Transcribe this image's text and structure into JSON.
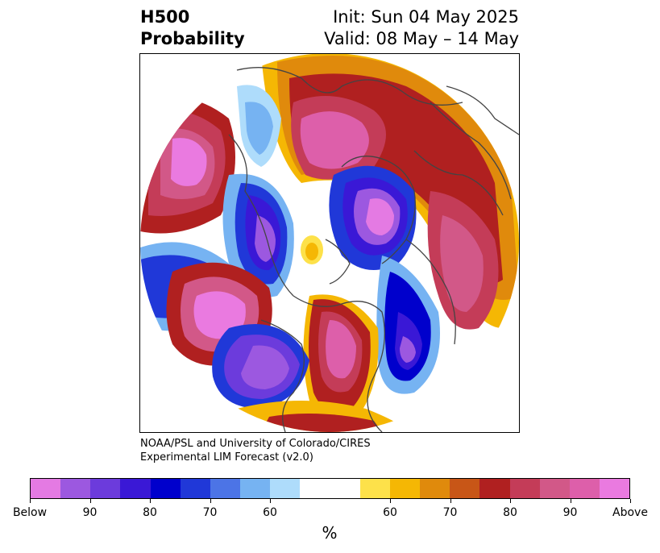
{
  "header": {
    "title_line1": "H500",
    "title_line2": "Probability",
    "init": "Init: Sun 04 May 2025",
    "valid": "Valid: 08 May – 14 May"
  },
  "credit": {
    "line1": "NOAA/PSL and University of Colorado/CIRES",
    "line2": "Experimental LIM Forecast (v2.0)"
  },
  "colorbar": {
    "unit": "%",
    "colors": [
      "#e47ae3",
      "#9c58e0",
      "#6c3bdc",
      "#3a18d6",
      "#0000cc",
      "#2038d8",
      "#4c74e6",
      "#76b3f2",
      "#aedcfb",
      "#ffffff",
      "#ffffff",
      "#fde14a",
      "#f5b704",
      "#e08a0c",
      "#c85617",
      "#b02020",
      "#c43c58",
      "#d25888",
      "#dd5faa",
      "#ea7ae0"
    ],
    "ticks": [
      "Below",
      "90",
      "80",
      "70",
      "60",
      "60",
      "70",
      "80",
      "90",
      "Above"
    ]
  },
  "map": {
    "colors": {
      "below_strong": "#e47ae3",
      "below_mid": "#0000cc",
      "below_weak": "#aedcfb",
      "neutral": "#ffffff",
      "above_weak": "#fde14a",
      "above_mid": "#b02020",
      "above_strong": "#ea7ae0",
      "coastline": "#444444"
    }
  }
}
